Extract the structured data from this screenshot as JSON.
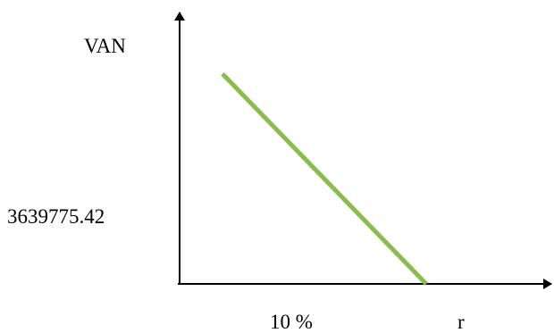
{
  "chart_data": {
    "type": "line",
    "ylabel": "VAN",
    "xlabel": "r",
    "x_tick_label": "10 %",
    "y_tick_label": "3639775.42",
    "series": [
      {
        "color": "#8cbb4f",
        "points": [
          {
            "x": 2.0,
            "y": 6200000
          },
          {
            "x": 11.5,
            "y": 0
          }
        ]
      }
    ],
    "x_tick_value": 10,
    "y_tick_value": 3639775.42,
    "xlim": [
      0,
      16
    ],
    "ylim": [
      0,
      7800000
    ],
    "grid": false,
    "legend": "none"
  }
}
